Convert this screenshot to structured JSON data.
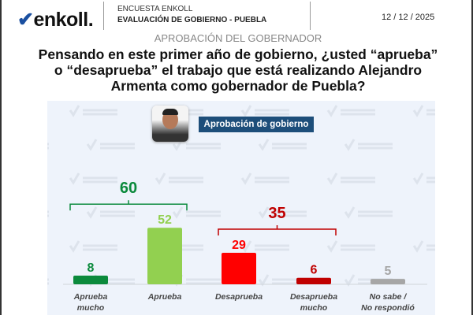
{
  "header": {
    "logo": "enkoll.",
    "survey": "ENCUESTA ENKOLL",
    "title": "EVALUACIÓN DE GOBIERNO - PUEBLA",
    "date": "12 / 12 / 2025"
  },
  "section": "APROBACIÓN DEL GOBERNADOR",
  "question": "Pensando en este primer año de gobierno, ¿usted “aprueba” o “desaprueba” el trabajo que está realizando Alejandro Armenta como gobernador de Puebla?",
  "watermark": "enkoll.",
  "chart_data": {
    "type": "bar",
    "title": "Aprobación de gobierno",
    "categories": [
      [
        "Aprueba",
        "mucho"
      ],
      [
        "Aprueba"
      ],
      [
        "Desaprueba"
      ],
      [
        "Desaprueba",
        "mucho"
      ],
      [
        "No sabe /",
        "No respondió"
      ]
    ],
    "values": [
      8,
      52,
      29,
      6,
      5
    ],
    "colors": [
      "#0b8a3c",
      "#92d050",
      "#ff0000",
      "#c00000",
      "#a6a6a6"
    ],
    "label_colors": [
      "#0b8a3c",
      "#92d050",
      "#ff0000",
      "#c00000",
      "#a6a6a6"
    ],
    "groups": [
      {
        "label": "60",
        "range": [
          0,
          1
        ],
        "color": "#0b8a3c"
      },
      {
        "label": "35",
        "range": [
          2,
          3
        ],
        "color": "#c00000"
      }
    ],
    "grid": false
  }
}
